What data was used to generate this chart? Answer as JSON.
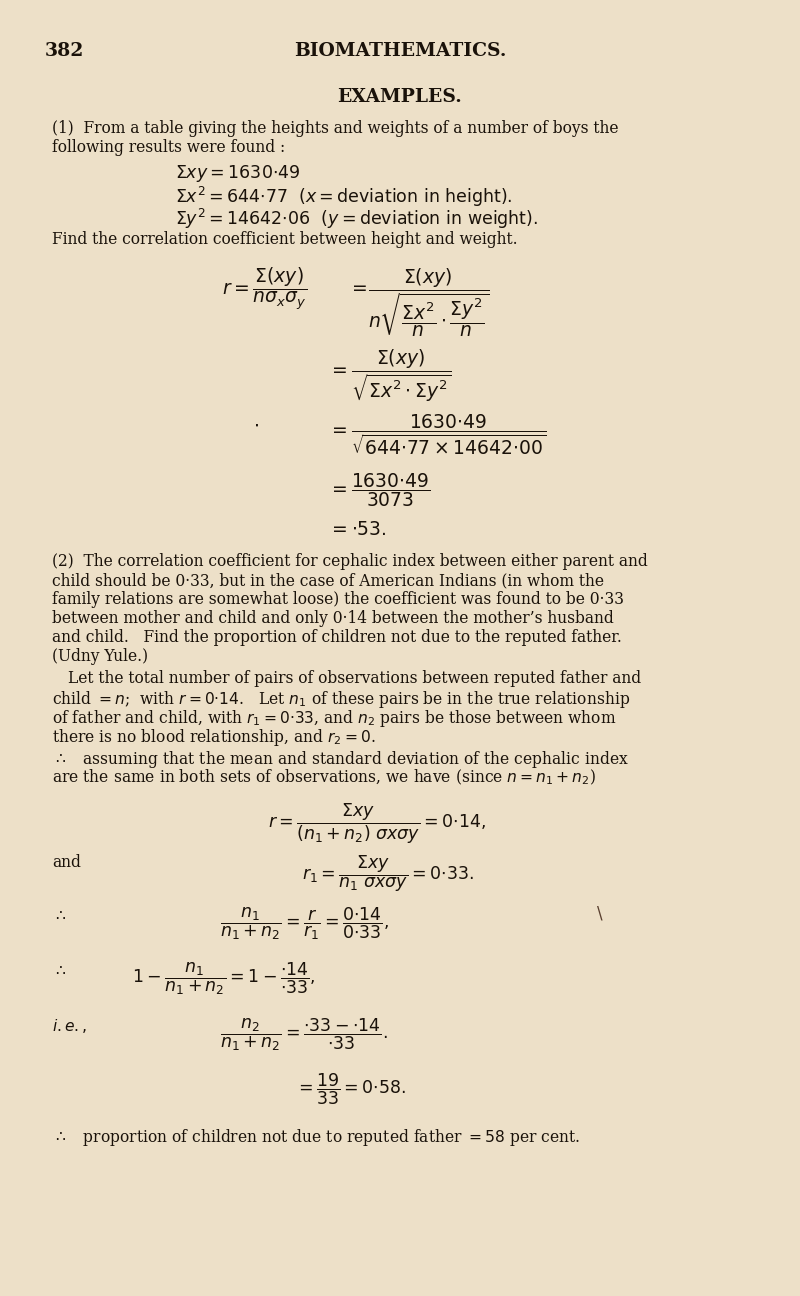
{
  "bg_color": "#ede0c8",
  "text_color": "#1a120a",
  "page_number": "382",
  "header": "BIOMATHEMATICS.",
  "title": "EXAMPLES."
}
